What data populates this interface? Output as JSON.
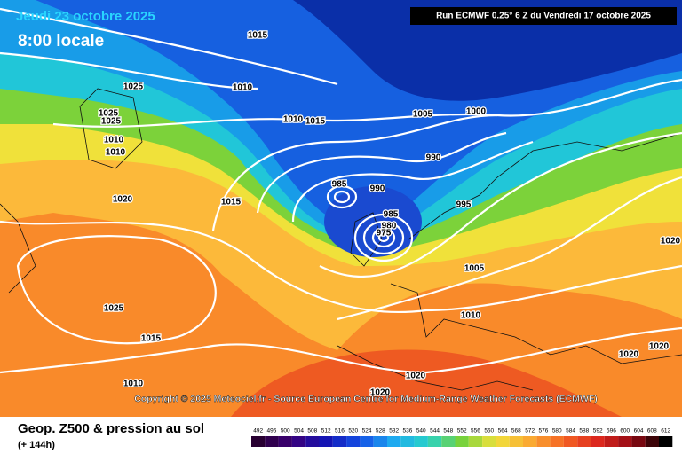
{
  "header": {
    "date": "Jeudi 23 octobre 2025",
    "time": "8:00 locale",
    "run": "Run ECMWF 0.25° 6 Z du Vendredi 17 octobre 2025"
  },
  "copyright": "Copyright © 2025 Meteociel.fr - Source European Centre for Medium-Range Weather Forecasts (ECMWF)",
  "legend": {
    "title": "Geop. Z500 & pression au sol",
    "lead": "(+ 144h)",
    "scale": [
      492,
      496,
      500,
      504,
      508,
      512,
      516,
      520,
      524,
      528,
      532,
      536,
      540,
      544,
      548,
      552,
      556,
      560,
      564,
      568,
      572,
      576,
      580,
      584,
      588,
      592,
      596,
      600,
      604,
      608,
      612
    ]
  },
  "isobar_labels": [
    "1015",
    "1025",
    "1010",
    "1025",
    "1025",
    "1010",
    "1010",
    "1020",
    "1015",
    "1010",
    "1015",
    "1005",
    "1000",
    "990",
    "985",
    "990",
    "995",
    "985",
    "980",
    "975",
    "1005",
    "1025",
    "1015",
    "1010",
    "1010",
    "1020",
    "1020",
    "1020",
    "1020",
    "1020"
  ]
}
